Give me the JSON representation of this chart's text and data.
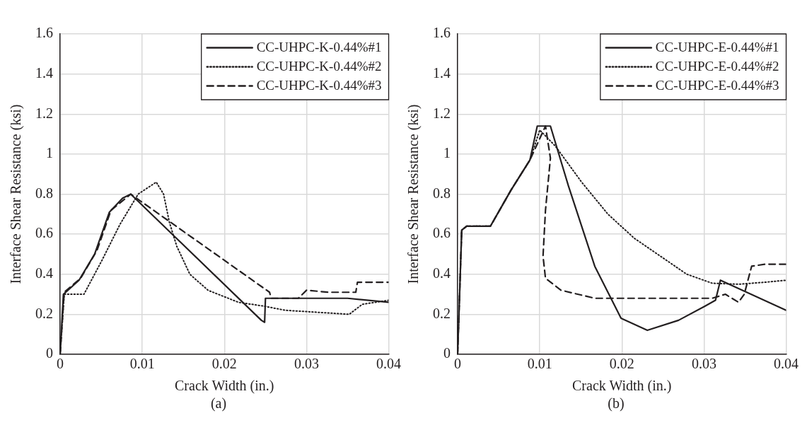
{
  "chart_data": [
    {
      "type": "line",
      "xlabel": "Crack Width (in.)",
      "ylabel": "Interface Shear Resistance (ksi)",
      "annotations": [
        "(a)"
      ],
      "xlim": [
        0,
        0.04
      ],
      "xticks": [
        0,
        0.01,
        0.02,
        0.03,
        0.04
      ],
      "ylim": [
        0,
        1.6
      ],
      "yticks": [
        0,
        0.2,
        0.4,
        0.6,
        0.8,
        1,
        1.2,
        1.4,
        1.6
      ],
      "grid": true,
      "legend": "top right",
      "marker": "none",
      "series": [
        {
          "name": "CC-UHPC-K-0.44%#1",
          "color": "#231f20",
          "line_style": "solid",
          "x": [
            0,
            0.0004,
            0.0023,
            0.0042,
            0.006,
            0.0076,
            0.0086,
            0.0245,
            0.0249,
            0.025,
            0.03,
            0.035,
            0.04
          ],
          "values": [
            0,
            0.3,
            0.37,
            0.5,
            0.71,
            0.78,
            0.8,
            0.17,
            0.16,
            0.28,
            0.28,
            0.28,
            0.26
          ]
        },
        {
          "name": "CC-UHPC-K-0.44%#2",
          "color": "#231f20",
          "line_style": "dotted",
          "x": [
            0,
            0.0005,
            0.0029,
            0.0051,
            0.0073,
            0.0095,
            0.0117,
            0.0126,
            0.0133,
            0.0142,
            0.0158,
            0.018,
            0.0217,
            0.0249,
            0.0274,
            0.0352,
            0.0368,
            0.04
          ],
          "values": [
            0,
            0.3,
            0.3,
            0.47,
            0.65,
            0.8,
            0.86,
            0.8,
            0.66,
            0.54,
            0.4,
            0.32,
            0.26,
            0.24,
            0.22,
            0.2,
            0.25,
            0.27
          ]
        },
        {
          "name": "CC-UHPC-K-0.44%#3",
          "color": "#231f20",
          "line_style": "dashed",
          "x": [
            0,
            0.0005,
            0.0025,
            0.0045,
            0.0062,
            0.0086,
            0.0255,
            0.0257,
            0.029,
            0.03,
            0.0327,
            0.036,
            0.0362,
            0.04
          ],
          "values": [
            0,
            0.31,
            0.38,
            0.52,
            0.72,
            0.8,
            0.31,
            0.28,
            0.28,
            0.32,
            0.31,
            0.31,
            0.36,
            0.36
          ]
        }
      ]
    },
    {
      "type": "line",
      "xlabel": "Crack Width (in.)",
      "ylabel": "Interface Shear Resistance (ksi)",
      "annotations": [
        "(b)"
      ],
      "xlim": [
        0,
        0.04
      ],
      "xticks": [
        0,
        0.01,
        0.02,
        0.03,
        0.04
      ],
      "ylim": [
        0,
        1.6
      ],
      "yticks": [
        0,
        0.2,
        0.4,
        0.6,
        0.8,
        1,
        1.2,
        1.4,
        1.6
      ],
      "grid": true,
      "legend": "top right",
      "marker": "none",
      "series": [
        {
          "name": "CC-UHPC-E-0.44%#1",
          "color": "#231f20",
          "line_style": "solid",
          "x": [
            0,
            0.0005,
            0.0011,
            0.004,
            0.0065,
            0.0088,
            0.0097,
            0.0113,
            0.0135,
            0.0167,
            0.0199,
            0.0231,
            0.0269,
            0.0301,
            0.0314,
            0.032,
            0.04
          ],
          "values": [
            0,
            0.62,
            0.64,
            0.64,
            0.82,
            0.97,
            1.14,
            1.14,
            0.84,
            0.44,
            0.18,
            0.12,
            0.17,
            0.24,
            0.27,
            0.37,
            0.22
          ]
        },
        {
          "name": "CC-UHPC-E-0.44%#2",
          "color": "#231f20",
          "line_style": "dotted",
          "x": [
            0,
            0.0005,
            0.0011,
            0.004,
            0.0065,
            0.0088,
            0.01,
            0.0119,
            0.0151,
            0.0183,
            0.0215,
            0.0247,
            0.0279,
            0.031,
            0.0342,
            0.0374,
            0.04
          ],
          "values": [
            0,
            0.62,
            0.64,
            0.64,
            0.82,
            0.97,
            1.12,
            1.04,
            0.86,
            0.7,
            0.58,
            0.49,
            0.4,
            0.355,
            0.35,
            0.36,
            0.37
          ]
        },
        {
          "name": "CC-UHPC-E-0.44%#3",
          "color": "#231f20",
          "line_style": "dashed",
          "x": [
            0,
            0.0005,
            0.0011,
            0.004,
            0.0065,
            0.0088,
            0.0107,
            0.0113,
            0.0107,
            0.0104,
            0.0107,
            0.0126,
            0.0167,
            0.031,
            0.0326,
            0.0342,
            0.0349,
            0.0358,
            0.0374,
            0.04
          ],
          "values": [
            0,
            0.62,
            0.64,
            0.64,
            0.82,
            0.97,
            1.14,
            0.98,
            0.72,
            0.49,
            0.38,
            0.32,
            0.28,
            0.28,
            0.3,
            0.26,
            0.3,
            0.44,
            0.45,
            0.45
          ]
        }
      ]
    }
  ]
}
